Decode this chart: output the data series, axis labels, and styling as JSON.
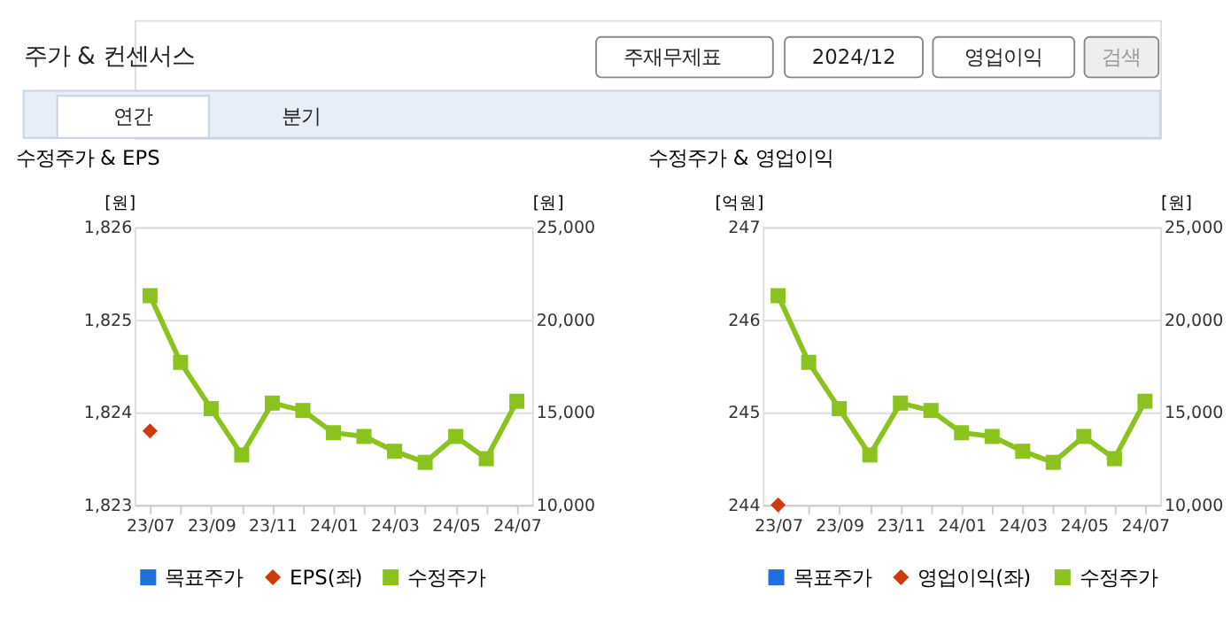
{
  "chart_data": [
    {
      "type": "line",
      "title": "수정주가 & EPS",
      "ylabel": "[원]",
      "y2label": "[원]",
      "annotations": [
        "주가 & 컨센서스",
        "주재무제표",
        "2024/12",
        "영업이익",
        "검색",
        "연간",
        "분기"
      ],
      "categories": [
        "23/07",
        null,
        "23/09",
        null,
        "23/11",
        null,
        "24/01",
        null,
        "24/03",
        null,
        "24/05",
        null,
        "24/07"
      ],
      "series": [
        {
          "name": "목표주가",
          "color": "#1f6fdc",
          "type": "scatter",
          "marker": "square",
          "values": [
            null,
            null,
            null,
            null,
            null,
            null,
            null,
            null,
            null,
            null,
            null,
            null,
            null
          ]
        },
        {
          "name": "EPS(좌)",
          "color": "#d03a0a",
          "type": "scatter",
          "marker": "diamond",
          "values": [
            1823.8,
            null,
            null,
            null,
            null,
            null,
            null,
            null,
            null,
            null,
            null,
            null,
            null
          ]
        },
        {
          "name": "수정주가",
          "color": "#8cc21e",
          "marker": "square",
          "axis": "y2",
          "values": [
            21300,
            17700,
            15200,
            12700,
            15500,
            15100,
            13900,
            13700,
            12900,
            12300,
            13700,
            12500,
            15600
          ]
        }
      ],
      "ylim": [
        1823,
        1826
      ],
      "yticks": [
        {
          "value": 1823,
          "label": "1,823"
        },
        {
          "value": 1824,
          "label": "1,824"
        },
        {
          "value": 1825,
          "label": "1,825"
        },
        {
          "value": 1826,
          "label": "1,826"
        }
      ],
      "y2lim": [
        10000,
        25000
      ],
      "y2ticks": [
        {
          "value": 10000,
          "label": "10,000"
        },
        {
          "value": 15000,
          "label": "15,000"
        },
        {
          "value": 20000,
          "label": "20,000"
        },
        {
          "value": 25000,
          "label": "25,000"
        }
      ],
      "grid": "y",
      "legend": "bottom"
    },
    {
      "type": "line",
      "title": "수정주가 & 영업이익",
      "ylabel": "[억원]",
      "y2label": "[원]",
      "categories": [
        "23/07",
        null,
        "23/09",
        null,
        "23/11",
        null,
        "24/01",
        null,
        "24/03",
        null,
        "24/05",
        null,
        "24/07"
      ],
      "series": [
        {
          "name": "목표주가",
          "color": "#1f6fdc",
          "type": "scatter",
          "marker": "square",
          "values": [
            null,
            null,
            null,
            null,
            null,
            null,
            null,
            null,
            null,
            null,
            null,
            null,
            null
          ]
        },
        {
          "name": "영업이익(좌)",
          "color": "#d03a0a",
          "type": "scatter",
          "marker": "diamond",
          "values": [
            244.0,
            null,
            null,
            null,
            null,
            null,
            null,
            null,
            null,
            null,
            null,
            null,
            null
          ]
        },
        {
          "name": "수정주가",
          "color": "#8cc21e",
          "marker": "square",
          "axis": "y2",
          "values": [
            21300,
            17700,
            15200,
            12700,
            15500,
            15100,
            13900,
            13700,
            12900,
            12300,
            13700,
            12500,
            15600
          ]
        }
      ],
      "ylim": [
        244,
        247
      ],
      "yticks": [
        244,
        245,
        246,
        247
      ],
      "y2lim": [
        10000,
        25000
      ],
      "y2ticks": [
        {
          "value": 10000,
          "label": "10,000"
        },
        {
          "value": 15000,
          "label": "15,000"
        },
        {
          "value": 20000,
          "label": "20,000"
        },
        {
          "value": 25000,
          "label": "25,000"
        }
      ],
      "grid": "y",
      "legend": "bottom"
    }
  ]
}
